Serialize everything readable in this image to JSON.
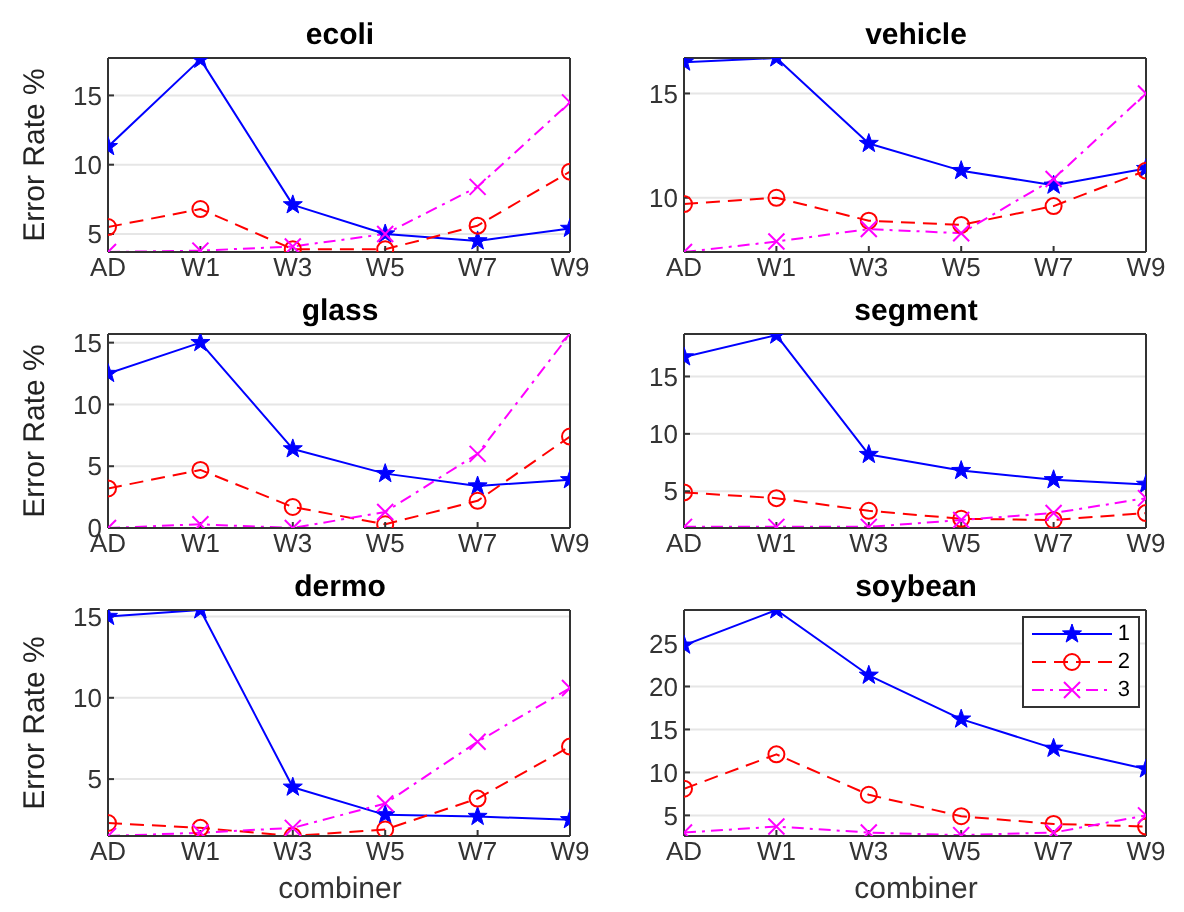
{
  "chart_data": [
    {
      "type": "line",
      "title": "ecoli",
      "ylabel": "Error Rate %",
      "categories": [
        "AD",
        "W1",
        "W3",
        "W5",
        "W7",
        "W9"
      ],
      "ylim": [
        3.7,
        17.7
      ],
      "yticks": [
        5,
        10,
        15
      ],
      "grid": "y",
      "legend": false,
      "series": [
        {
          "color": "#0000ff",
          "marker": "star",
          "line_style": "solid",
          "values": [
            11.3,
            17.6,
            7.1,
            5.0,
            4.5,
            5.4
          ]
        },
        {
          "color": "#ff0000",
          "marker": "circle",
          "line_style": "dashed",
          "values": [
            5.5,
            6.8,
            3.9,
            3.9,
            5.6,
            9.5
          ]
        },
        {
          "color": "#ff00ff",
          "marker": "cross",
          "line_style": "dotted",
          "values": [
            3.7,
            3.8,
            4.1,
            5.0,
            8.4,
            14.5
          ]
        }
      ]
    },
    {
      "type": "line",
      "title": "vehicle",
      "categories": [
        "AD",
        "W1",
        "W3",
        "W5",
        "W7",
        "W9"
      ],
      "ylim": [
        7.4,
        16.7
      ],
      "yticks": [
        10,
        15
      ],
      "grid": "y",
      "legend": false,
      "series": [
        {
          "color": "#0000ff",
          "marker": "star",
          "line_style": "solid",
          "values": [
            16.5,
            16.7,
            12.6,
            11.3,
            10.6,
            11.4
          ]
        },
        {
          "color": "#ff0000",
          "marker": "circle",
          "line_style": "dashed",
          "values": [
            9.7,
            10.0,
            8.9,
            8.7,
            9.6,
            11.3
          ]
        },
        {
          "color": "#ff00ff",
          "marker": "cross",
          "line_style": "dotted",
          "values": [
            7.4,
            7.9,
            8.5,
            8.3,
            10.9,
            15.0
          ]
        }
      ]
    },
    {
      "type": "line",
      "title": "glass",
      "ylabel": "Error Rate %",
      "categories": [
        "AD",
        "W1",
        "W3",
        "W5",
        "W7",
        "W9"
      ],
      "ylim": [
        0,
        15.7
      ],
      "yticks": [
        0,
        5,
        10,
        15
      ],
      "grid": "y",
      "legend": false,
      "series": [
        {
          "color": "#0000ff",
          "marker": "star",
          "line_style": "solid",
          "values": [
            12.5,
            15.0,
            6.4,
            4.4,
            3.4,
            3.9
          ]
        },
        {
          "color": "#ff0000",
          "marker": "circle",
          "line_style": "dashed",
          "values": [
            3.2,
            4.7,
            1.7,
            0.3,
            2.2,
            7.4
          ]
        },
        {
          "color": "#ff00ff",
          "marker": "cross",
          "line_style": "dotted",
          "values": [
            0,
            0.3,
            0,
            1.3,
            6.0,
            15.7
          ]
        }
      ]
    },
    {
      "type": "line",
      "title": "segment",
      "categories": [
        "AD",
        "W1",
        "W3",
        "W5",
        "W7",
        "W9"
      ],
      "ylim": [
        1.8,
        18.7
      ],
      "yticks": [
        5,
        10,
        15
      ],
      "grid": "y",
      "legend": false,
      "series": [
        {
          "color": "#0000ff",
          "marker": "star",
          "line_style": "solid",
          "values": [
            16.7,
            18.6,
            8.2,
            6.8,
            6.0,
            5.6
          ]
        },
        {
          "color": "#ff0000",
          "marker": "circle",
          "line_style": "dashed",
          "values": [
            4.9,
            4.4,
            3.3,
            2.6,
            2.5,
            3.1
          ]
        },
        {
          "color": "#ff00ff",
          "marker": "cross",
          "line_style": "dotted",
          "values": [
            1.9,
            1.9,
            1.9,
            2.5,
            3.1,
            4.4
          ]
        }
      ]
    },
    {
      "type": "line",
      "title": "dermo",
      "ylabel": "Error Rate %",
      "xlabel": "combiner",
      "categories": [
        "AD",
        "W1",
        "W3",
        "W5",
        "W7",
        "W9"
      ],
      "ylim": [
        1.5,
        15.4
      ],
      "yticks": [
        5,
        10,
        15
      ],
      "grid": "y",
      "legend": false,
      "series": [
        {
          "color": "#0000ff",
          "marker": "star",
          "line_style": "solid",
          "values": [
            15.0,
            15.4,
            4.5,
            2.8,
            2.7,
            2.5
          ]
        },
        {
          "color": "#ff0000",
          "marker": "circle",
          "line_style": "dashed",
          "values": [
            2.3,
            2.0,
            1.5,
            1.9,
            3.8,
            7.0
          ]
        },
        {
          "color": "#ff00ff",
          "marker": "cross",
          "line_style": "dotted",
          "values": [
            1.5,
            1.7,
            2.0,
            3.5,
            7.3,
            10.6
          ]
        }
      ]
    },
    {
      "type": "line",
      "title": "soybean",
      "xlabel": "combiner",
      "categories": [
        "AD",
        "W1",
        "W3",
        "W5",
        "W7",
        "W9"
      ],
      "ylim": [
        2.6,
        28.9
      ],
      "yticks": [
        5,
        10,
        15,
        20,
        25
      ],
      "grid": "y",
      "legend": "top right",
      "series": [
        {
          "name": "1",
          "color": "#0000ff",
          "marker": "star",
          "line_style": "solid",
          "values": [
            24.8,
            28.9,
            21.3,
            16.2,
            12.8,
            10.4
          ]
        },
        {
          "name": "2",
          "color": "#ff0000",
          "marker": "circle",
          "line_style": "dashed",
          "values": [
            8.1,
            12.1,
            7.4,
            4.9,
            4.0,
            3.7
          ]
        },
        {
          "name": "3",
          "color": "#ff00ff",
          "marker": "cross",
          "line_style": "dotted",
          "values": [
            3.0,
            3.7,
            3.0,
            2.7,
            3.0,
            5.0
          ]
        }
      ]
    }
  ]
}
